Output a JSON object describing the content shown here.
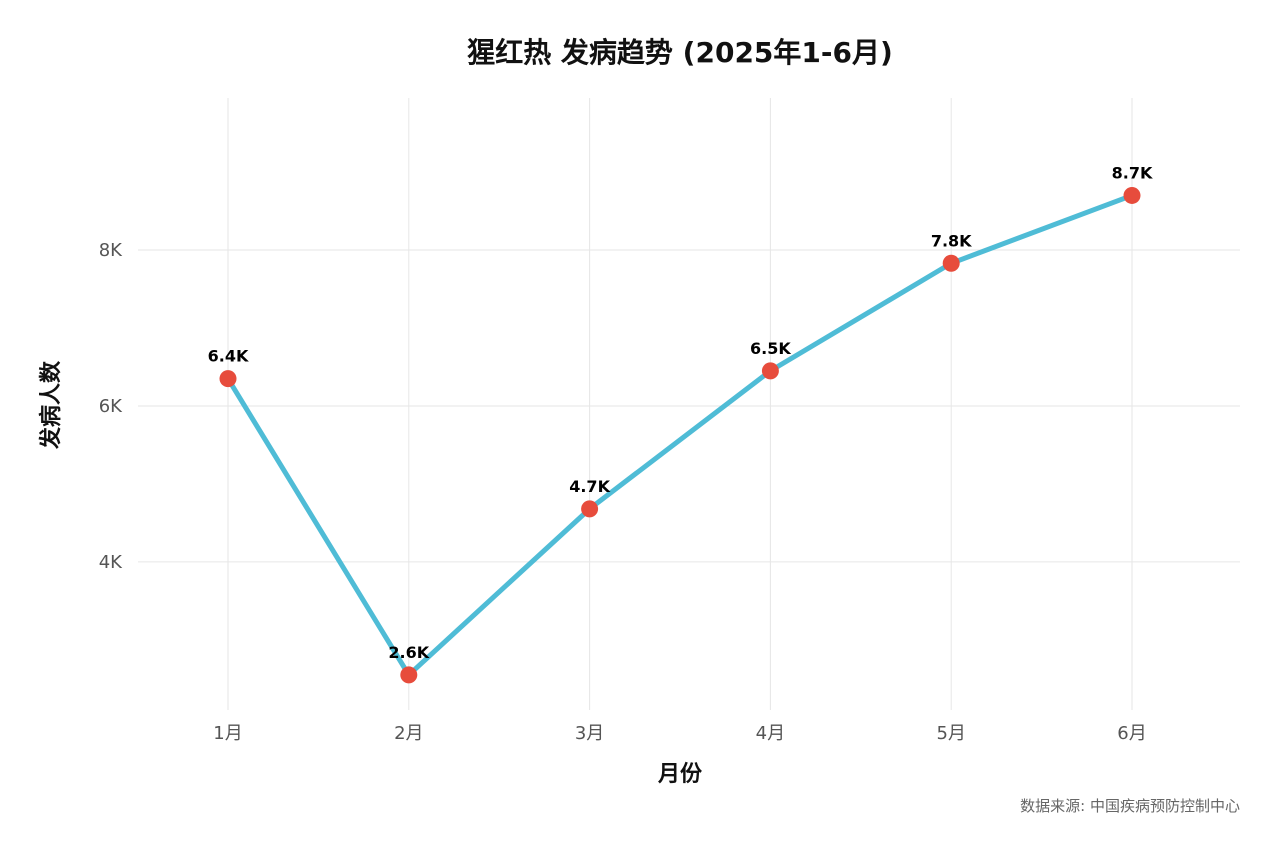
{
  "chart_data": {
    "type": "line",
    "title": "猩红热 发病趋势 (2025年1-6月)",
    "xlabel": "月份",
    "ylabel": "发病人数",
    "categories": [
      "1月",
      "2月",
      "3月",
      "4月",
      "5月",
      "6月"
    ],
    "series": [
      {
        "values": [
          6350,
          2550,
          4680,
          6450,
          7830,
          8700
        ],
        "labels": [
          "6.4K",
          "2.6K",
          "4.7K",
          "6.5K",
          "7.8K",
          "8.7K"
        ]
      }
    ],
    "ylim": [
      2100,
      9950
    ],
    "yticks": [
      4000,
      6000,
      8000
    ],
    "ytick_labels": [
      "4K",
      "6K",
      "8K"
    ],
    "grid": true,
    "legend": "none",
    "caption": "数据来源: 中国疾病预防控制中心",
    "colors": {
      "line": "#4FBCD6",
      "marker": "#E74C3C",
      "grid": "#E6E6E6"
    }
  }
}
